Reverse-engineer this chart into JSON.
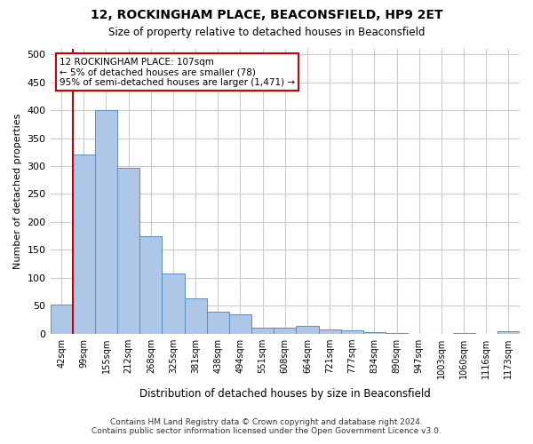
{
  "title": "12, ROCKINGHAM PLACE, BEACONSFIELD, HP9 2ET",
  "subtitle": "Size of property relative to detached houses in Beaconsfield",
  "xlabel": "Distribution of detached houses by size in Beaconsfield",
  "ylabel": "Number of detached properties",
  "categories": [
    "42sqm",
    "99sqm",
    "155sqm",
    "212sqm",
    "268sqm",
    "325sqm",
    "381sqm",
    "438sqm",
    "494sqm",
    "551sqm",
    "608sqm",
    "664sqm",
    "721sqm",
    "777sqm",
    "834sqm",
    "890sqm",
    "947sqm",
    "1003sqm",
    "1060sqm",
    "1116sqm",
    "1173sqm"
  ],
  "values": [
    52,
    320,
    400,
    297,
    175,
    107,
    63,
    39,
    35,
    10,
    10,
    14,
    8,
    6,
    3,
    1,
    0,
    0,
    1,
    0,
    5
  ],
  "bar_color": "#aec6e8",
  "bar_edge_color": "#5a8fc2",
  "background_color": "#ffffff",
  "grid_color": "#cccccc",
  "property_line_color": "#cc0000",
  "annotation_line1": "12 ROCKINGHAM PLACE: 107sqm",
  "annotation_line2": "← 5% of detached houses are smaller (78)",
  "annotation_line3": "95% of semi-detached houses are larger (1,471) →",
  "annotation_box_color": "#cc0000",
  "ylim": [
    0,
    510
  ],
  "yticks": [
    0,
    50,
    100,
    150,
    200,
    250,
    300,
    350,
    400,
    450,
    500
  ],
  "footnote1": "Contains HM Land Registry data © Crown copyright and database right 2024.",
  "footnote2": "Contains public sector information licensed under the Open Government Licence v3.0."
}
